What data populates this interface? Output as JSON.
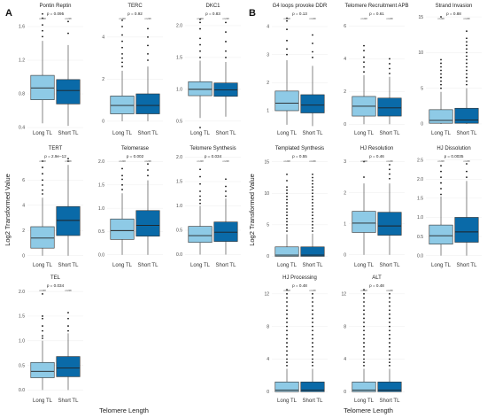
{
  "figure": {
    "tags": [
      "A",
      "B"
    ],
    "ylabel": "Log2 Transformed Value",
    "xlabel": "Telomere Length",
    "n_label": "n=208",
    "colors": {
      "long": "#8ecae6",
      "short": "#0a6aa8",
      "whisker": "#333333",
      "outlier": "#111111"
    }
  },
  "chart_data": [
    {
      "type": "box",
      "title": "Pontin Reptin",
      "pvalue": "p = 0.095",
      "categories": [
        "Long TL",
        "Short TL"
      ],
      "yticks": [
        "0.4",
        "0.8",
        "1.2",
        "1.6"
      ],
      "ylim": [
        0.4,
        1.8
      ],
      "boxes": [
        {
          "q1": 0.73,
          "median": 0.87,
          "q3": 1.02,
          "lo": 0.45,
          "hi": 1.43,
          "outliers": [
            1.48,
            1.55,
            1.62,
            1.7,
            1.75
          ]
        },
        {
          "q1": 0.68,
          "median": 0.84,
          "q3": 0.97,
          "lo": 0.42,
          "hi": 1.38,
          "outliers": [
            1.52,
            1.66
          ]
        }
      ]
    },
    {
      "type": "box",
      "title": "TERC",
      "pvalue": "p = 0.92",
      "categories": [
        "Long TL",
        "Short TL"
      ],
      "yticks": [
        "0",
        "2",
        "4"
      ],
      "ylim": [
        -0.3,
        5.3
      ],
      "boxes": [
        {
          "q1": 0.35,
          "median": 0.75,
          "q3": 1.2,
          "lo": 0,
          "hi": 2.4,
          "outliers": [
            2.6,
            2.8,
            3.0,
            3.2,
            3.5,
            3.8,
            4.1,
            4.5,
            4.8
          ]
        },
        {
          "q1": 0.35,
          "median": 0.75,
          "q3": 1.3,
          "lo": 0,
          "hi": 2.6,
          "outliers": [
            2.9,
            3.2,
            3.6,
            4.0,
            4.4
          ]
        }
      ]
    },
    {
      "type": "box",
      "title": "DKC1",
      "pvalue": "p = 0.83",
      "categories": [
        "Long TL",
        "Short TL"
      ],
      "yticks": [
        "0.5",
        "1.0",
        "1.5",
        "2.0"
      ],
      "ylim": [
        0.4,
        2.25
      ],
      "boxes": [
        {
          "q1": 0.9,
          "median": 1.0,
          "q3": 1.12,
          "lo": 0.55,
          "hi": 1.45,
          "outliers": [
            1.5,
            1.6,
            1.7,
            1.8,
            1.95,
            2.05,
            2.1,
            0.4
          ]
        },
        {
          "q1": 0.89,
          "median": 0.99,
          "q3": 1.1,
          "lo": 0.57,
          "hi": 1.43,
          "outliers": [
            1.5,
            1.6,
            1.75,
            1.9,
            2.05
          ]
        }
      ]
    },
    {
      "type": "box",
      "title": "TERT",
      "pvalue": "p = 2.9e−12",
      "categories": [
        "Long TL",
        "Short TL"
      ],
      "yticks": [
        "0",
        "2",
        "4",
        "6"
      ],
      "ylim": [
        -0.3,
        8.2
      ],
      "boxes": [
        {
          "q1": 0.6,
          "median": 1.4,
          "q3": 2.3,
          "lo": 0,
          "hi": 4.6,
          "outliers": [
            4.9,
            5.2,
            5.6,
            6.0,
            6.5,
            7.0,
            7.5
          ]
        },
        {
          "q1": 1.6,
          "median": 2.8,
          "q3": 3.9,
          "lo": 0,
          "hi": 7.2,
          "outliers": [
            7.5,
            7.7
          ]
        }
      ]
    },
    {
      "type": "box",
      "title": "Telomerase",
      "pvalue": "p = 0.002",
      "categories": [
        "Long TL",
        "Short TL"
      ],
      "yticks": [
        "0.0",
        "0.5",
        "1.0",
        "1.5",
        "2.0"
      ],
      "ylim": [
        -0.1,
        2.2
      ],
      "boxes": [
        {
          "q1": 0.33,
          "median": 0.52,
          "q3": 0.77,
          "lo": 0,
          "hi": 1.32,
          "outliers": [
            1.4,
            1.5,
            1.62,
            1.7,
            1.85
          ]
        },
        {
          "q1": 0.4,
          "median": 0.63,
          "q3": 0.95,
          "lo": 0,
          "hi": 1.6,
          "outliers": [
            1.7,
            1.82,
            1.95
          ]
        }
      ]
    },
    {
      "type": "box",
      "title": "Telomere Synthesis",
      "pvalue": "p = 0.034",
      "categories": [
        "Long TL",
        "Short TL"
      ],
      "yticks": [
        "0.0",
        "0.5",
        "1.0",
        "1.5",
        "2.0"
      ],
      "ylim": [
        -0.1,
        2.1
      ],
      "boxes": [
        {
          "q1": 0.25,
          "median": 0.39,
          "q3": 0.58,
          "lo": 0,
          "hi": 1.0,
          "outliers": [
            1.05,
            1.12,
            1.2,
            1.3,
            1.45,
            1.6,
            1.75
          ]
        },
        {
          "q1": 0.27,
          "median": 0.46,
          "q3": 0.67,
          "lo": 0,
          "hi": 1.15,
          "outliers": [
            1.2,
            1.3,
            1.4,
            1.55
          ]
        }
      ]
    },
    {
      "type": "box",
      "title": "TEL",
      "pvalue": "p = 0.034",
      "categories": [
        "Long TL",
        "Short TL"
      ],
      "yticks": [
        "0.0",
        "0.5",
        "1.0",
        "1.5",
        "2.0"
      ],
      "ylim": [
        -0.1,
        2.2
      ],
      "boxes": [
        {
          "q1": 0.25,
          "median": 0.38,
          "q3": 0.56,
          "lo": 0,
          "hi": 1.0,
          "outliers": [
            1.05,
            1.1,
            1.2,
            1.3,
            1.45,
            1.5,
            1.95
          ]
        },
        {
          "q1": 0.27,
          "median": 0.45,
          "q3": 0.68,
          "lo": 0,
          "hi": 1.15,
          "outliers": [
            1.2,
            1.3,
            1.45,
            1.57
          ]
        }
      ]
    },
    {
      "type": "box",
      "title": "G4 loops provoke DDR",
      "pvalue": "p = 0.13",
      "categories": [
        "Long TL",
        "Short TL"
      ],
      "yticks": [
        "1",
        "2",
        "3",
        "4"
      ],
      "ylim": [
        0.4,
        4.6
      ],
      "boxes": [
        {
          "q1": 1.0,
          "median": 1.27,
          "q3": 1.7,
          "lo": 0.5,
          "hi": 2.8,
          "outliers": [
            3.0,
            3.2,
            3.5,
            3.9,
            4.2,
            4.3
          ]
        },
        {
          "q1": 0.92,
          "median": 1.2,
          "q3": 1.57,
          "lo": 0.45,
          "hi": 2.6,
          "outliers": [
            2.9,
            3.1,
            3.4,
            3.7
          ]
        }
      ]
    },
    {
      "type": "box",
      "title": "Telomere Recruitment APB",
      "pvalue": "p = 0.61",
      "categories": [
        "Long TL",
        "Short TL"
      ],
      "yticks": [
        "0",
        "2",
        "4",
        "6"
      ],
      "ylim": [
        -0.2,
        7.0
      ],
      "boxes": [
        {
          "q1": 0.5,
          "median": 1.1,
          "q3": 1.7,
          "lo": 0,
          "hi": 3.0,
          "outliers": [
            3.2,
            3.5,
            3.8,
            4.1,
            4.5,
            4.8
          ]
        },
        {
          "q1": 0.5,
          "median": 1.0,
          "q3": 1.6,
          "lo": 0,
          "hi": 2.9,
          "outliers": [
            3.1,
            3.4,
            3.7,
            4.0
          ]
        }
      ]
    },
    {
      "type": "box",
      "title": "Strand Invasion",
      "pvalue": "p = 0.88",
      "categories": [
        "Long TL",
        "Short TL"
      ],
      "yticks": [
        "0",
        "5",
        "10",
        "15"
      ],
      "ylim": [
        -0.5,
        16.0
      ],
      "boxes": [
        {
          "q1": 0.1,
          "median": 0.5,
          "q3": 2.0,
          "lo": 0,
          "hi": 4.5,
          "outliers": [
            5.0,
            5.5,
            6.0,
            6.5,
            7.0,
            7.5,
            8.0,
            8.5,
            9.0,
            15.0
          ]
        },
        {
          "q1": 0.1,
          "median": 0.55,
          "q3": 2.2,
          "lo": 0,
          "hi": 5.0,
          "outliers": [
            5.5,
            6.0,
            6.5,
            7.0,
            7.5,
            8.0,
            8.5,
            9.0,
            9.5,
            10.0,
            10.5,
            11.0,
            11.5,
            12.0,
            13.0
          ]
        }
      ]
    },
    {
      "type": "box",
      "title": "Templated Synthesis",
      "pvalue": "p = 0.55",
      "categories": [
        "Long TL",
        "Short TL"
      ],
      "yticks": [
        "0",
        "5",
        "10",
        "15"
      ],
      "ylim": [
        -0.5,
        16.5
      ],
      "boxes": [
        {
          "q1": 0,
          "median": 0.2,
          "q3": 1.5,
          "lo": 0,
          "hi": 3.5,
          "outliers": [
            4.0,
            4.5,
            5.0,
            5.5,
            6.0,
            6.5,
            7.0,
            7.5,
            8.0,
            8.5,
            9.0,
            9.5,
            10.0,
            10.5,
            11.0,
            12.0,
            13.0
          ]
        },
        {
          "q1": 0,
          "median": 0.2,
          "q3": 1.5,
          "lo": 0,
          "hi": 3.6,
          "outliers": [
            4.0,
            4.5,
            5.0,
            5.5,
            6.0,
            6.5,
            7.0,
            7.5,
            8.0,
            8.5,
            9.0,
            9.5,
            10.0,
            10.5,
            11.0,
            11.5,
            12.0,
            12.5,
            13.0
          ]
        }
      ]
    },
    {
      "type": "box",
      "title": "HJ Resolution",
      "pvalue": "p = 0.46",
      "categories": [
        "Long TL",
        "Short TL"
      ],
      "yticks": [
        "0",
        "1",
        "2",
        "3"
      ],
      "ylim": [
        -0.15,
        3.3
      ],
      "boxes": [
        {
          "q1": 0.72,
          "median": 1.02,
          "q3": 1.4,
          "lo": 0,
          "hi": 2.3,
          "outliers": [
            2.5,
            3.0
          ]
        },
        {
          "q1": 0.63,
          "median": 0.93,
          "q3": 1.37,
          "lo": 0,
          "hi": 2.3,
          "outliers": [
            2.45,
            2.6,
            2.75,
            2.9
          ]
        }
      ]
    },
    {
      "type": "box",
      "title": "HJ Dissolution",
      "pvalue": "p = 0.0035",
      "categories": [
        "Long TL",
        "Short TL"
      ],
      "yticks": [
        "0.0",
        "0.5",
        "1.0",
        "1.5",
        "2.0",
        "2.5"
      ],
      "ylim": [
        -0.1,
        2.7
      ],
      "boxes": [
        {
          "q1": 0.3,
          "median": 0.52,
          "q3": 0.8,
          "lo": 0,
          "hi": 1.55,
          "outliers": [
            1.6,
            1.75,
            1.9,
            2.05,
            2.2,
            2.35
          ]
        },
        {
          "q1": 0.35,
          "median": 0.62,
          "q3": 1.0,
          "lo": 0,
          "hi": 1.95,
          "outliers": [
            2.05,
            2.2,
            2.4
          ]
        }
      ]
    },
    {
      "type": "box",
      "title": "HJ Processing",
      "pvalue": "p = 0.48",
      "categories": [
        "Long TL",
        "Short TL"
      ],
      "yticks": [
        "0",
        "4",
        "8",
        "12"
      ],
      "ylim": [
        -0.4,
        13.5
      ],
      "boxes": [
        {
          "q1": 0,
          "median": 0.2,
          "q3": 1.2,
          "lo": 0,
          "hi": 2.8,
          "outliers": [
            3.2,
            3.6,
            4.0,
            4.5,
            5.0,
            5.5,
            6.0,
            6.5,
            7.0,
            7.5,
            8.0,
            8.5,
            9.0,
            9.5,
            10.0,
            10.5,
            11.0,
            11.5,
            12.0,
            12.5
          ]
        },
        {
          "q1": 0,
          "median": 0.2,
          "q3": 1.2,
          "lo": 0,
          "hi": 2.8,
          "outliers": [
            3.2,
            3.6,
            4.0,
            4.5,
            5.0,
            5.5,
            6.0,
            6.5,
            7.0,
            7.5,
            8.0,
            8.5,
            9.0,
            9.5,
            10.0,
            10.5,
            11.0,
            11.5,
            12.0
          ]
        }
      ]
    },
    {
      "type": "box",
      "title": "ALT",
      "pvalue": "p = 0.48",
      "categories": [
        "Long TL",
        "Short TL"
      ],
      "yticks": [
        "0",
        "4",
        "8",
        "12"
      ],
      "ylim": [
        -0.4,
        13.5
      ],
      "boxes": [
        {
          "q1": 0,
          "median": 0.2,
          "q3": 1.2,
          "lo": 0,
          "hi": 2.8,
          "outliers": [
            3.2,
            3.6,
            4.0,
            4.5,
            5.0,
            5.5,
            6.0,
            6.5,
            7.0,
            7.5,
            8.0,
            8.5,
            9.0,
            9.5,
            10.0,
            10.5,
            11.0,
            11.5,
            12.0,
            12.5
          ]
        },
        {
          "q1": 0,
          "median": 0.2,
          "q3": 1.2,
          "lo": 0,
          "hi": 2.8,
          "outliers": [
            3.2,
            3.6,
            4.0,
            4.5,
            5.0,
            5.5,
            6.0,
            6.5,
            7.0,
            7.5,
            8.0,
            8.5,
            9.0,
            9.5,
            10.0,
            10.5,
            11.0,
            11.5,
            12.0
          ]
        }
      ]
    }
  ]
}
